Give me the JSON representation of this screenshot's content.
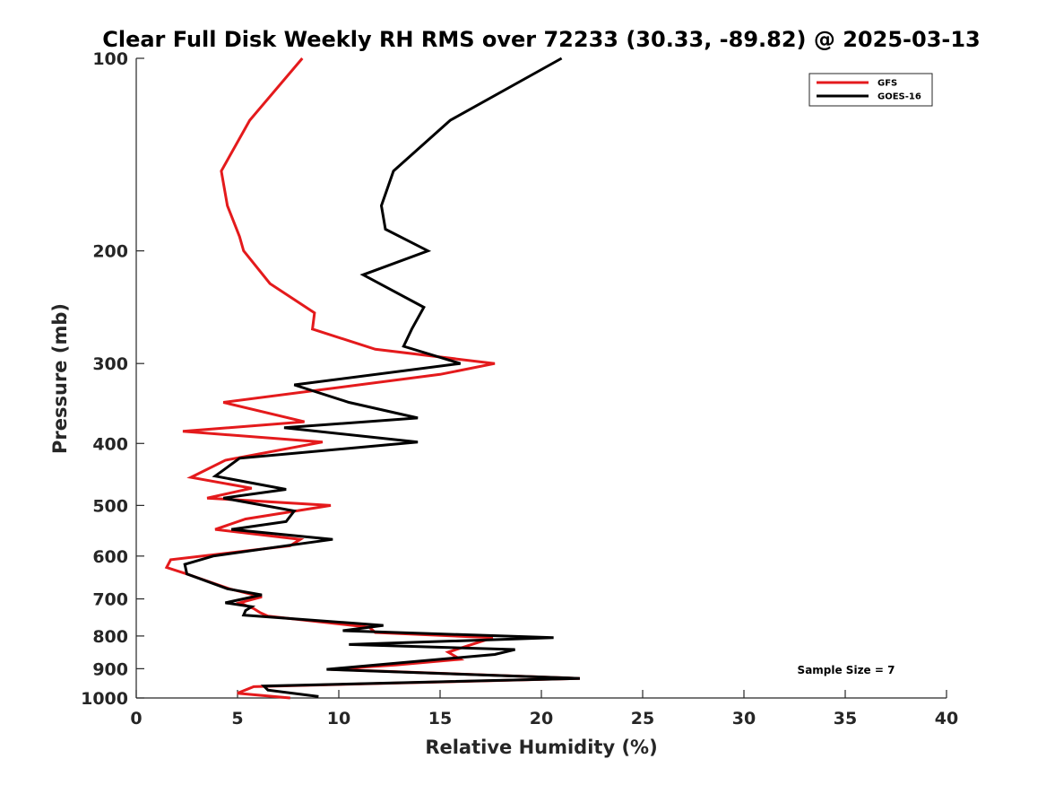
{
  "chart_data": {
    "type": "line",
    "title": "Clear Full Disk Weekly RH RMS over 72233 (30.33, -89.82) @ 2025-03-13",
    "xlabel": "Relative Humidity (%)",
    "ylabel": "Pressure (mb)",
    "xlim": [
      0,
      40
    ],
    "ylim": [
      100,
      1000
    ],
    "yscale": "log",
    "y_reversed": true,
    "xticks": [
      0,
      5,
      10,
      15,
      20,
      25,
      30,
      35,
      40
    ],
    "xtick_labels": [
      "0",
      "5",
      "10",
      "15",
      "20",
      "25",
      "30",
      "35",
      "40"
    ],
    "yticks": [
      100,
      200,
      300,
      400,
      500,
      600,
      700,
      800,
      900,
      1000
    ],
    "ytick_labels": [
      "100",
      "200",
      "300",
      "400",
      "500",
      "600",
      "700",
      "800",
      "900",
      "1000"
    ],
    "grid": false,
    "legend_position": "top-right",
    "annotation": "Sample Size = 7",
    "series": [
      {
        "name": "GFS",
        "color": "#e41a1c",
        "points": [
          [
            8.2,
            100
          ],
          [
            5.6,
            125
          ],
          [
            4.2,
            150
          ],
          [
            4.5,
            170
          ],
          [
            5.1,
            190
          ],
          [
            5.3,
            200
          ],
          [
            6.6,
            225
          ],
          [
            8.8,
            250
          ],
          [
            8.7,
            265
          ],
          [
            11.8,
            285
          ],
          [
            17.7,
            300
          ],
          [
            15.0,
            312
          ],
          [
            4.3,
            345
          ],
          [
            8.3,
            370
          ],
          [
            2.3,
            383
          ],
          [
            9.2,
            398
          ],
          [
            4.4,
            425
          ],
          [
            2.7,
            452
          ],
          [
            5.7,
            470
          ],
          [
            3.5,
            487
          ],
          [
            9.6,
            500
          ],
          [
            5.4,
            525
          ],
          [
            3.9,
            545
          ],
          [
            8.1,
            565
          ],
          [
            7.6,
            578
          ],
          [
            1.7,
            608
          ],
          [
            1.5,
            625
          ],
          [
            2.5,
            640
          ],
          [
            4.6,
            675
          ],
          [
            6.2,
            695
          ],
          [
            5.1,
            710
          ],
          [
            5.8,
            725
          ],
          [
            6.1,
            735
          ],
          [
            6.5,
            745
          ],
          [
            11.5,
            775
          ],
          [
            11.8,
            790
          ],
          [
            17.6,
            805
          ],
          [
            15.4,
            848
          ],
          [
            16.0,
            870
          ],
          [
            12.8,
            888
          ],
          [
            9.6,
            902
          ],
          [
            21.9,
            932
          ],
          [
            5.8,
            960
          ],
          [
            5.0,
            983
          ],
          [
            7.6,
            1000
          ]
        ]
      },
      {
        "name": "GOES-16",
        "color": "#000000",
        "points": [
          [
            21.0,
            100
          ],
          [
            15.5,
            125
          ],
          [
            12.7,
            150
          ],
          [
            12.1,
            170
          ],
          [
            12.3,
            185
          ],
          [
            14.4,
            200
          ],
          [
            11.2,
            218
          ],
          [
            14.2,
            245
          ],
          [
            13.6,
            265
          ],
          [
            13.2,
            282
          ],
          [
            16.0,
            300
          ],
          [
            7.8,
            324
          ],
          [
            10.5,
            345
          ],
          [
            13.9,
            365
          ],
          [
            7.3,
            378
          ],
          [
            13.9,
            398
          ],
          [
            5.1,
            422
          ],
          [
            3.9,
            450
          ],
          [
            7.4,
            472
          ],
          [
            4.3,
            487
          ],
          [
            7.8,
            510
          ],
          [
            7.4,
            530
          ],
          [
            4.7,
            545
          ],
          [
            9.7,
            565
          ],
          [
            7.4,
            578
          ],
          [
            3.8,
            600
          ],
          [
            2.4,
            618
          ],
          [
            2.5,
            640
          ],
          [
            4.5,
            675
          ],
          [
            6.2,
            690
          ],
          [
            4.4,
            710
          ],
          [
            5.7,
            720
          ],
          [
            5.4,
            730
          ],
          [
            5.3,
            742
          ],
          [
            12.2,
            770
          ],
          [
            10.2,
            785
          ],
          [
            20.6,
            805
          ],
          [
            10.5,
            825
          ],
          [
            18.7,
            840
          ],
          [
            17.7,
            855
          ],
          [
            9.4,
            902
          ],
          [
            21.9,
            932
          ],
          [
            6.3,
            958
          ],
          [
            6.5,
            972
          ],
          [
            9.0,
            995
          ]
        ]
      }
    ]
  }
}
